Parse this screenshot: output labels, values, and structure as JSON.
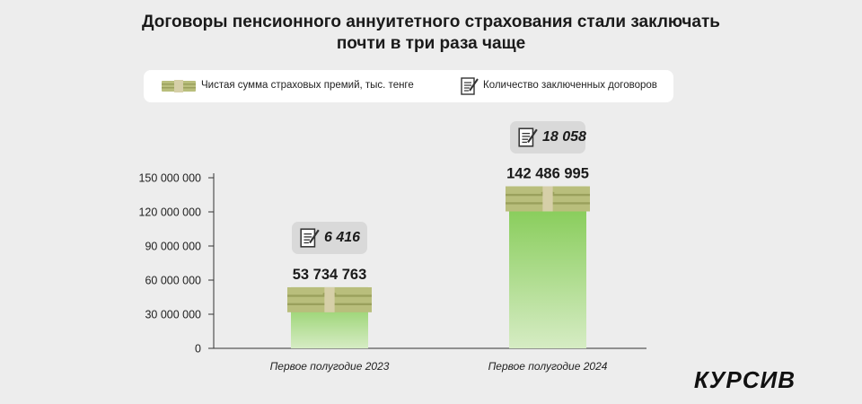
{
  "header": {
    "title_line1": "Договоры пенсионного аннуитетного страхования стали заключать",
    "title_line2": "почти в три раза чаще"
  },
  "legend": {
    "premiums": {
      "label": "Чистая сумма страховых премий, тыс. тенге",
      "icon": "money-stack-icon"
    },
    "contracts": {
      "label": "Количество заключенных договоров",
      "icon": "document-pen-icon"
    }
  },
  "brand": "КУРСИВ",
  "colors": {
    "background": "#ededed",
    "bar_top": "#7cc84a",
    "bar_bottom": "#d6ecc4",
    "money": "#b9be7c",
    "money_dark": "#9aa05c",
    "band": "#d6cfa8"
  },
  "chart_data": {
    "type": "bar",
    "title": "Договоры пенсионного аннуитетного страхования стали заключать почти в три раза чаще",
    "categories": [
      "Первое полугодие 2023",
      "Первое полугодие 2024"
    ],
    "series": [
      {
        "name": "Чистая сумма страховых премий, тыс. тенге",
        "values": [
          53734763,
          142486995
        ],
        "value_labels": [
          "53 734 763",
          "142 486 995"
        ]
      },
      {
        "name": "Количество заключенных договоров",
        "values": [
          6416,
          18058
        ],
        "value_labels": [
          "6 416",
          "18 058"
        ]
      }
    ],
    "ylim": [
      0,
      150000000
    ],
    "yticks": [
      0,
      30000000,
      60000000,
      90000000,
      120000000,
      150000000
    ],
    "ytick_labels": [
      "0",
      "30 000 000",
      "60 000 000",
      "90 000 000",
      "120 000 000",
      "150 000 000"
    ],
    "grid": false,
    "legend_position": "top"
  }
}
